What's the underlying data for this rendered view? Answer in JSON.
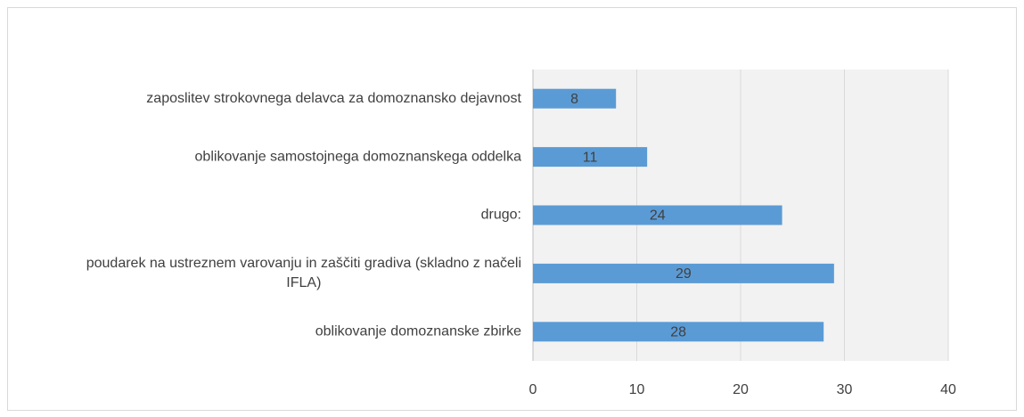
{
  "chart_data": {
    "type": "bar",
    "orientation": "horizontal",
    "categories": [
      "zaposlitev strokovnega delavca za domoznansko dejavnost",
      "oblikovanje samostojnega domoznanskega oddelka",
      "drugo:",
      "poudarek na ustreznem varovanju in zaščiti gradiva (skladno z načeli IFLA)",
      "oblikovanje domoznanske zbirke"
    ],
    "values": [
      8,
      11,
      24,
      29,
      28
    ],
    "color": "#5b9bd5",
    "xlim": [
      0,
      40
    ],
    "xticks": [
      0,
      10,
      20,
      30,
      40
    ],
    "grid": true
  }
}
